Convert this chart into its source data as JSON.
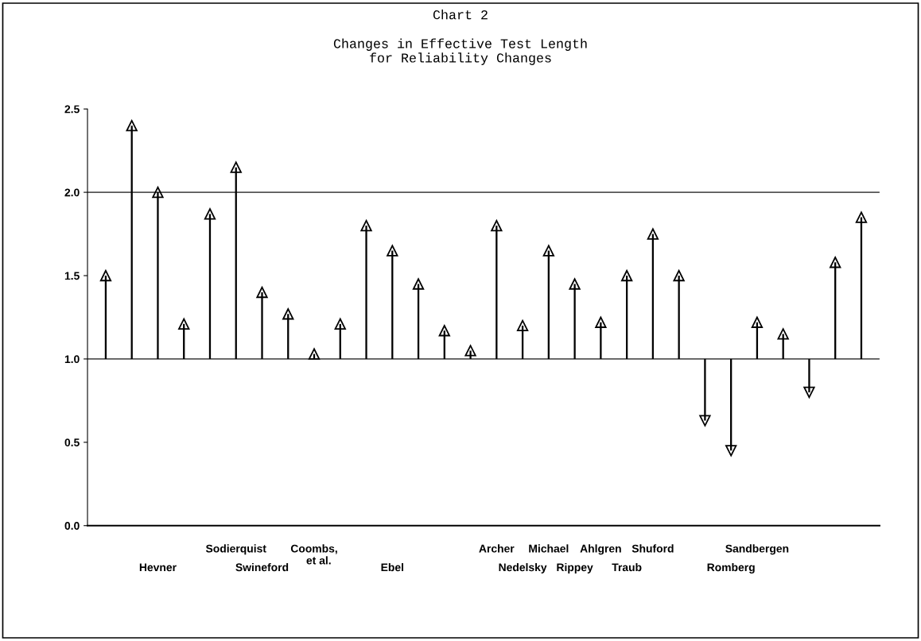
{
  "chart_data": {
    "type": "bar",
    "title": "Chart 2",
    "subtitle": "Changes in Effective Test Length\nfor Reliability Changes",
    "categories": [
      null,
      null,
      "Hevner",
      null,
      null,
      "Sodierquist",
      "Swineford",
      null,
      "Coombs,\n   et al.",
      null,
      null,
      "Ebel",
      null,
      null,
      null,
      "Archer",
      "Nedelsky",
      "Michael",
      "Rippey",
      "Ahlgren",
      "Traub",
      "Shuford",
      null,
      null,
      "Romberg",
      "Sandbergen",
      null,
      null,
      null,
      null
    ],
    "base": [
      1.0,
      1.0,
      1.0,
      1.0,
      1.0,
      1.0,
      1.0,
      1.0,
      1.0,
      1.0,
      1.0,
      1.0,
      1.0,
      1.0,
      1.0,
      1.0,
      1.0,
      1.0,
      1.0,
      1.0,
      1.0,
      1.0,
      1.0,
      1.0,
      1.0,
      1.0,
      1.0,
      1.0,
      1.0,
      1.0
    ],
    "values": [
      0.5,
      1.4,
      1.0,
      0.21,
      0.87,
      1.15,
      0.4,
      0.27,
      0.03,
      0.21,
      0.8,
      0.65,
      0.45,
      0.17,
      0.05,
      0.8,
      0.2,
      0.65,
      0.45,
      0.22,
      0.5,
      0.75,
      0.5,
      -0.37,
      -0.55,
      0.22,
      0.15,
      -0.2,
      0.58,
      0.85
    ],
    "color": "#000000",
    "ylim": [
      0,
      2.5
    ],
    "yticks": [
      {
        "value": 0,
        "label": "0.0"
      },
      0.5,
      {
        "value": 1,
        "label": "1.0"
      },
      1.5,
      {
        "value": 2,
        "label": "2.0"
      },
      2.5
    ],
    "ref_lines": [
      {
        "axis": "y",
        "value": 1.0,
        "color": "#555555"
      },
      {
        "axis": "y",
        "value": 2.0,
        "color": "#555555"
      }
    ],
    "grid": false
  }
}
